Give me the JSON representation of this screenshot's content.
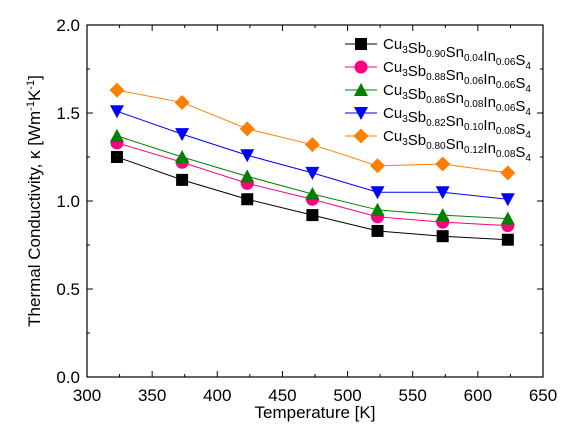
{
  "chart_data": {
    "type": "line",
    "xlabel": "Temperature [K]",
    "ylabel": "Thermal Conductivity, κ [Wm⁻¹K⁻¹]",
    "xlim": [
      300,
      650
    ],
    "ylim": [
      0.0,
      2.0
    ],
    "xticks": [
      "300",
      "350",
      "400",
      "450",
      "500",
      "550",
      "600",
      "650"
    ],
    "yticks": [
      "0.0",
      "0.5",
      "1.0",
      "1.5",
      "2.0"
    ],
    "grid": false,
    "legend_position": "top-right",
    "x": [
      323,
      373,
      423,
      473,
      523,
      573,
      623
    ],
    "series": [
      {
        "name": "Cu3Sb0.90Sn0.04In0.06S4",
        "name_parts": [
          [
            "Cu",
            ""
          ],
          [
            "3",
            "sub"
          ],
          [
            "Sb",
            ""
          ],
          [
            "0.90",
            "sub"
          ],
          [
            "Sn",
            ""
          ],
          [
            "0.04",
            "sub"
          ],
          [
            "In",
            ""
          ],
          [
            "0.06",
            "sub"
          ],
          [
            "S",
            ""
          ],
          [
            "4",
            "sub"
          ]
        ],
        "color": "#000000",
        "marker": "square",
        "values": [
          1.25,
          1.12,
          1.01,
          0.92,
          0.83,
          0.8,
          0.78
        ]
      },
      {
        "name": "Cu3Sb0.88Sn0.06In0.06S4",
        "name_parts": [
          [
            "Cu",
            ""
          ],
          [
            "3",
            "sub"
          ],
          [
            "Sb",
            ""
          ],
          [
            "0.88",
            "sub"
          ],
          [
            "Sn",
            ""
          ],
          [
            "0.06",
            "sub"
          ],
          [
            "In",
            ""
          ],
          [
            "0.06",
            "sub"
          ],
          [
            "S",
            ""
          ],
          [
            "4",
            "sub"
          ]
        ],
        "color": "#ff0080",
        "marker": "circle",
        "values": [
          1.33,
          1.22,
          1.1,
          1.01,
          0.91,
          0.88,
          0.86
        ]
      },
      {
        "name": "Cu3Sb0.86Sn0.08In0.06S4",
        "name_parts": [
          [
            "Cu",
            ""
          ],
          [
            "3",
            "sub"
          ],
          [
            "Sb",
            ""
          ],
          [
            "0.86",
            "sub"
          ],
          [
            "Sn",
            ""
          ],
          [
            "0.08",
            "sub"
          ],
          [
            "In",
            ""
          ],
          [
            "0.06",
            "sub"
          ],
          [
            "S",
            ""
          ],
          [
            "4",
            "sub"
          ]
        ],
        "color": "#008000",
        "marker": "triangle-up",
        "values": [
          1.37,
          1.25,
          1.14,
          1.04,
          0.95,
          0.92,
          0.9
        ]
      },
      {
        "name": "Cu3Sb0.82Sn0.10In0.08S4",
        "name_parts": [
          [
            "Cu",
            ""
          ],
          [
            "3",
            "sub"
          ],
          [
            "Sb",
            ""
          ],
          [
            "0.82",
            "sub"
          ],
          [
            "Sn",
            ""
          ],
          [
            "0.10",
            "sub"
          ],
          [
            "In",
            ""
          ],
          [
            "0.08",
            "sub"
          ],
          [
            "S",
            ""
          ],
          [
            "4",
            "sub"
          ]
        ],
        "color": "#0000ff",
        "marker": "triangle-down",
        "values": [
          1.51,
          1.38,
          1.26,
          1.16,
          1.05,
          1.05,
          1.01
        ]
      },
      {
        "name": "Cu3Sb0.80Sn0.12In0.08S4",
        "name_parts": [
          [
            "Cu",
            ""
          ],
          [
            "3",
            "sub"
          ],
          [
            "Sb",
            ""
          ],
          [
            "0.80",
            "sub"
          ],
          [
            "Sn",
            ""
          ],
          [
            "0.12",
            "sub"
          ],
          [
            "In",
            ""
          ],
          [
            "0.08",
            "sub"
          ],
          [
            "S",
            ""
          ],
          [
            "4",
            "sub"
          ]
        ],
        "color": "#ff8000",
        "marker": "diamond",
        "values": [
          1.63,
          1.56,
          1.41,
          1.32,
          1.2,
          1.21,
          1.16
        ]
      }
    ]
  }
}
